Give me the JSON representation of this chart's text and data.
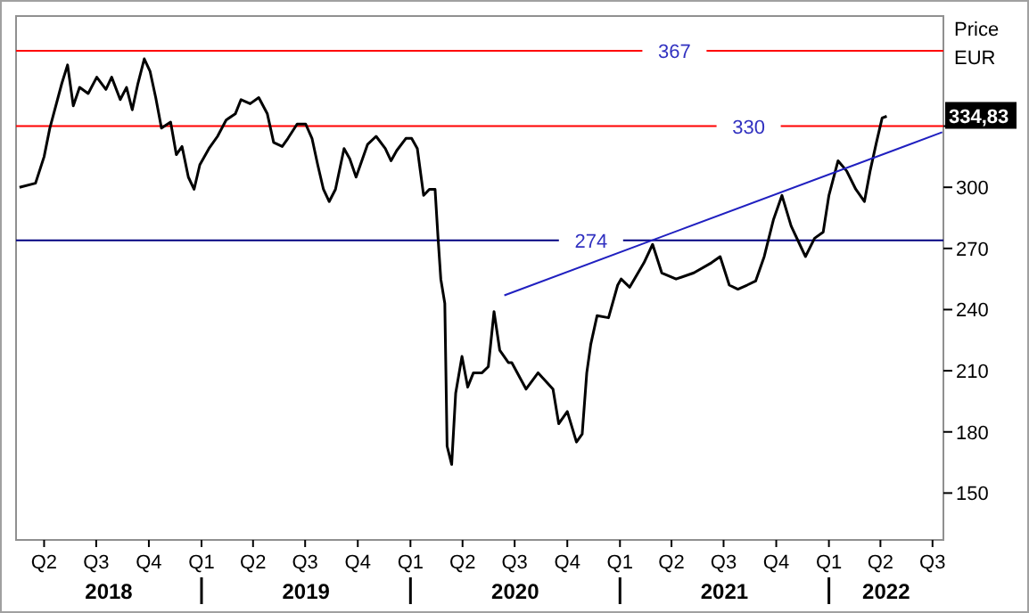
{
  "chart_data": {
    "type": "line",
    "ylabel": "Price EUR",
    "x": [
      "2018-02-17",
      "2018-03-17",
      "2018-04-01",
      "2018-04-11",
      "2018-05-02",
      "2018-05-12",
      "2018-05-22",
      "2018-06-02",
      "2018-06-17",
      "2018-07-02",
      "2018-07-18",
      "2018-07-28",
      "2018-08-12",
      "2018-08-23",
      "2018-09-02",
      "2018-09-12",
      "2018-09-23",
      "2018-10-03",
      "2018-10-13",
      "2018-10-23",
      "2018-11-08",
      "2018-11-18",
      "2018-11-28",
      "2018-12-09",
      "2018-12-19",
      "2018-12-29",
      "2019-01-14",
      "2019-01-29",
      "2019-02-13",
      "2019-03-01",
      "2019-03-11",
      "2019-03-27",
      "2019-04-11",
      "2019-04-26",
      "2019-05-07",
      "2019-05-22",
      "2019-06-01",
      "2019-06-17",
      "2019-07-02",
      "2019-07-13",
      "2019-07-23",
      "2019-08-02",
      "2019-08-12",
      "2019-08-23",
      "2019-09-07",
      "2019-09-17",
      "2019-09-28",
      "2019-10-08",
      "2019-10-18",
      "2019-11-02",
      "2019-11-18",
      "2019-11-28",
      "2019-12-08",
      "2019-12-24",
      "2020-01-03",
      "2020-01-13",
      "2020-01-24",
      "2020-02-03",
      "2020-02-13",
      "2020-02-18",
      "2020-02-23",
      "2020-03-01",
      "2020-03-05",
      "2020-03-13",
      "2020-03-20",
      "2020-03-31",
      "2020-04-10",
      "2020-04-20",
      "2020-05-05",
      "2020-05-16",
      "2020-05-26",
      "2020-06-05",
      "2020-06-20",
      "2020-06-26",
      "2020-07-21",
      "2020-08-11",
      "2020-09-06",
      "2020-09-16",
      "2020-10-01",
      "2020-10-17",
      "2020-10-27",
      "2020-11-04",
      "2020-11-11",
      "2020-11-22",
      "2020-12-12",
      "2020-12-28",
      "2021-01-03",
      "2021-01-18",
      "2021-02-12",
      "2021-02-27",
      "2021-03-15",
      "2021-04-09",
      "2021-05-10",
      "2021-06-10",
      "2021-06-25",
      "2021-07-11",
      "2021-07-26",
      "2021-08-11",
      "2021-08-26",
      "2021-09-10",
      "2021-09-26",
      "2021-10-11",
      "2021-10-27",
      "2021-11-11",
      "2021-11-21",
      "2021-12-07",
      "2021-12-22",
      "2022-01-01",
      "2022-01-17",
      "2022-02-01",
      "2022-02-17",
      "2022-03-04",
      "2022-03-14",
      "2022-03-25",
      "2022-04-04",
      "2022-04-12"
    ],
    "series": [
      {
        "color": "#000000",
        "values": [
          300,
          302,
          315,
          329,
          351,
          360,
          340,
          349,
          346,
          354,
          348,
          354,
          343,
          349,
          338,
          351,
          363,
          357,
          344,
          329,
          332,
          316,
          320,
          305,
          299,
          311,
          319,
          325,
          333,
          336,
          343,
          341,
          344,
          336,
          322,
          320,
          324,
          331,
          331,
          324,
          311,
          299,
          293,
          299,
          319,
          314,
          305,
          313,
          321,
          325,
          319,
          313,
          318,
          324,
          324,
          319,
          296,
          299,
          299,
          276,
          255,
          243,
          173,
          164,
          199,
          217,
          202,
          209,
          209,
          212,
          239,
          220,
          214,
          214,
          201,
          209,
          201,
          184,
          190,
          175,
          179,
          209,
          223,
          237,
          236,
          252,
          255,
          251,
          263,
          272,
          258,
          255,
          258,
          263,
          266,
          252,
          250,
          252,
          254,
          266,
          284,
          296,
          281,
          272,
          266,
          275,
          278,
          296,
          313,
          308,
          299,
          293,
          308,
          322,
          334,
          334.83
        ]
      },
      {
        "type": "line",
        "color": "#2020c0",
        "x": [
          "2020-06-13",
          "2022-07-18"
        ],
        "values": [
          247,
          327
        ]
      }
    ],
    "xlim": [
      "2018-02-11",
      "2022-07-20"
    ],
    "xticks": [
      {
        "value": "2018-04-01",
        "label": "Q2"
      },
      {
        "value": "2018-07-01",
        "label": "Q3"
      },
      {
        "value": "2018-10-01",
        "label": "Q4"
      },
      {
        "value": "2019-01-01",
        "label": "Q1"
      },
      {
        "value": "2019-04-01",
        "label": "Q2"
      },
      {
        "value": "2019-07-01",
        "label": "Q3"
      },
      {
        "value": "2019-10-01",
        "label": "Q4"
      },
      {
        "value": "2020-01-01",
        "label": "Q1"
      },
      {
        "value": "2020-04-01",
        "label": "Q2"
      },
      {
        "value": "2020-07-01",
        "label": "Q3"
      },
      {
        "value": "2020-10-01",
        "label": "Q4"
      },
      {
        "value": "2021-01-01",
        "label": "Q1"
      },
      {
        "value": "2021-04-01",
        "label": "Q2"
      },
      {
        "value": "2021-07-01",
        "label": "Q3"
      },
      {
        "value": "2021-10-01",
        "label": "Q4"
      },
      {
        "value": "2022-01-01",
        "label": "Q1"
      },
      {
        "value": "2022-04-01",
        "label": "Q2"
      },
      {
        "value": "2022-07-01",
        "label": "Q3"
      }
    ],
    "ylim": [
      127,
      384
    ],
    "yticks": [
      150,
      180,
      210,
      240,
      270,
      300,
      {
        "value": 330,
        "label": null
      }
    ],
    "ref_lines": [
      {
        "axis": "y",
        "value": 367,
        "label": "367",
        "color": "#ff0000"
      },
      {
        "axis": "y",
        "value": 330,
        "label": "330",
        "color": "#ff0000"
      },
      {
        "axis": "y",
        "value": 274,
        "label": "274",
        "color": "#000080"
      }
    ],
    "annotations": [
      "2018",
      "2019",
      "2020",
      "2021",
      "2022",
      {
        "text": "334,83",
        "y": 334.83
      }
    ]
  }
}
